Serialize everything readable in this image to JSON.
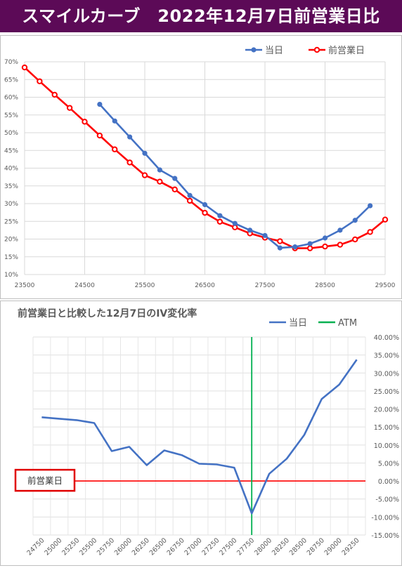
{
  "header": {
    "title": "スマイルカーブ　2022年12月7日前営業日比"
  },
  "chart_data": [
    {
      "type": "line",
      "title": "",
      "xlim": [
        23500,
        29500
      ],
      "ylim": [
        10,
        70
      ],
      "x_ticks": [
        "23500",
        "24500",
        "25500",
        "26500",
        "27500",
        "28500",
        "29500"
      ],
      "y_ticks": [
        "10%",
        "15%",
        "20%",
        "25%",
        "30%",
        "35%",
        "40%",
        "45%",
        "50%",
        "55%",
        "60%",
        "65%",
        "70%"
      ],
      "grid": true,
      "legend_position": "top-right",
      "series": [
        {
          "name": "当日",
          "color": "#4472c4",
          "x": [
            24750,
            25000,
            25250,
            25500,
            25750,
            26000,
            26250,
            26500,
            26750,
            27000,
            27250,
            27500,
            27750,
            28000,
            28250,
            28500,
            28750,
            29000,
            29250
          ],
          "y": [
            58.0,
            53.3,
            48.8,
            44.2,
            39.5,
            37.1,
            32.3,
            29.7,
            26.6,
            24.4,
            22.5,
            21.0,
            17.5,
            17.8,
            18.7,
            20.3,
            22.5,
            25.3,
            29.4
          ]
        },
        {
          "name": "前営業日",
          "color": "#ff0000",
          "x": [
            23500,
            23750,
            24000,
            24250,
            24500,
            24750,
            25000,
            25250,
            25500,
            25750,
            26000,
            26250,
            26500,
            26750,
            27000,
            27250,
            27500,
            27750,
            28000,
            28250,
            28500,
            28750,
            29000,
            29250,
            29500
          ],
          "y": [
            68.4,
            64.5,
            60.7,
            57.0,
            53.1,
            49.2,
            45.3,
            41.6,
            38.0,
            36.2,
            34.0,
            30.8,
            27.4,
            24.9,
            23.3,
            21.6,
            20.4,
            19.4,
            17.4,
            17.4,
            17.9,
            18.4,
            19.9,
            22.0,
            25.5
          ]
        }
      ]
    },
    {
      "type": "line",
      "title": "前営業日と比較した12月7日のIV変化率",
      "ylim": [
        -15,
        40
      ],
      "y_ticks": [
        "40.00%",
        "35.00%",
        "30.00%",
        "25.00%",
        "20.00%",
        "15.00%",
        "10.00%",
        "5.00%",
        "0.00%",
        "-5.00%",
        "-10.00%",
        "-15.00%"
      ],
      "categories": [
        "24750",
        "25000",
        "25250",
        "25500",
        "25750",
        "26000",
        "26250",
        "26500",
        "26750",
        "27000",
        "27250",
        "27500",
        "27750",
        "28000",
        "28250",
        "28500",
        "28750",
        "29000",
        "29250"
      ],
      "grid": true,
      "legend_position": "top-right",
      "series": [
        {
          "name": "当日",
          "color": "#4472c4",
          "values": [
            17.7,
            17.3,
            16.9,
            16.1,
            8.3,
            9.5,
            4.4,
            8.5,
            7.2,
            4.8,
            4.6,
            3.7,
            -9.0,
            2.0,
            6.2,
            12.8,
            22.8,
            26.8,
            33.7
          ]
        },
        {
          "name": "ATM",
          "color": "#00b050",
          "at_category": "27750"
        }
      ],
      "reference_line": {
        "label": "前営業日",
        "value": 0,
        "color": "#ff0000"
      }
    }
  ]
}
